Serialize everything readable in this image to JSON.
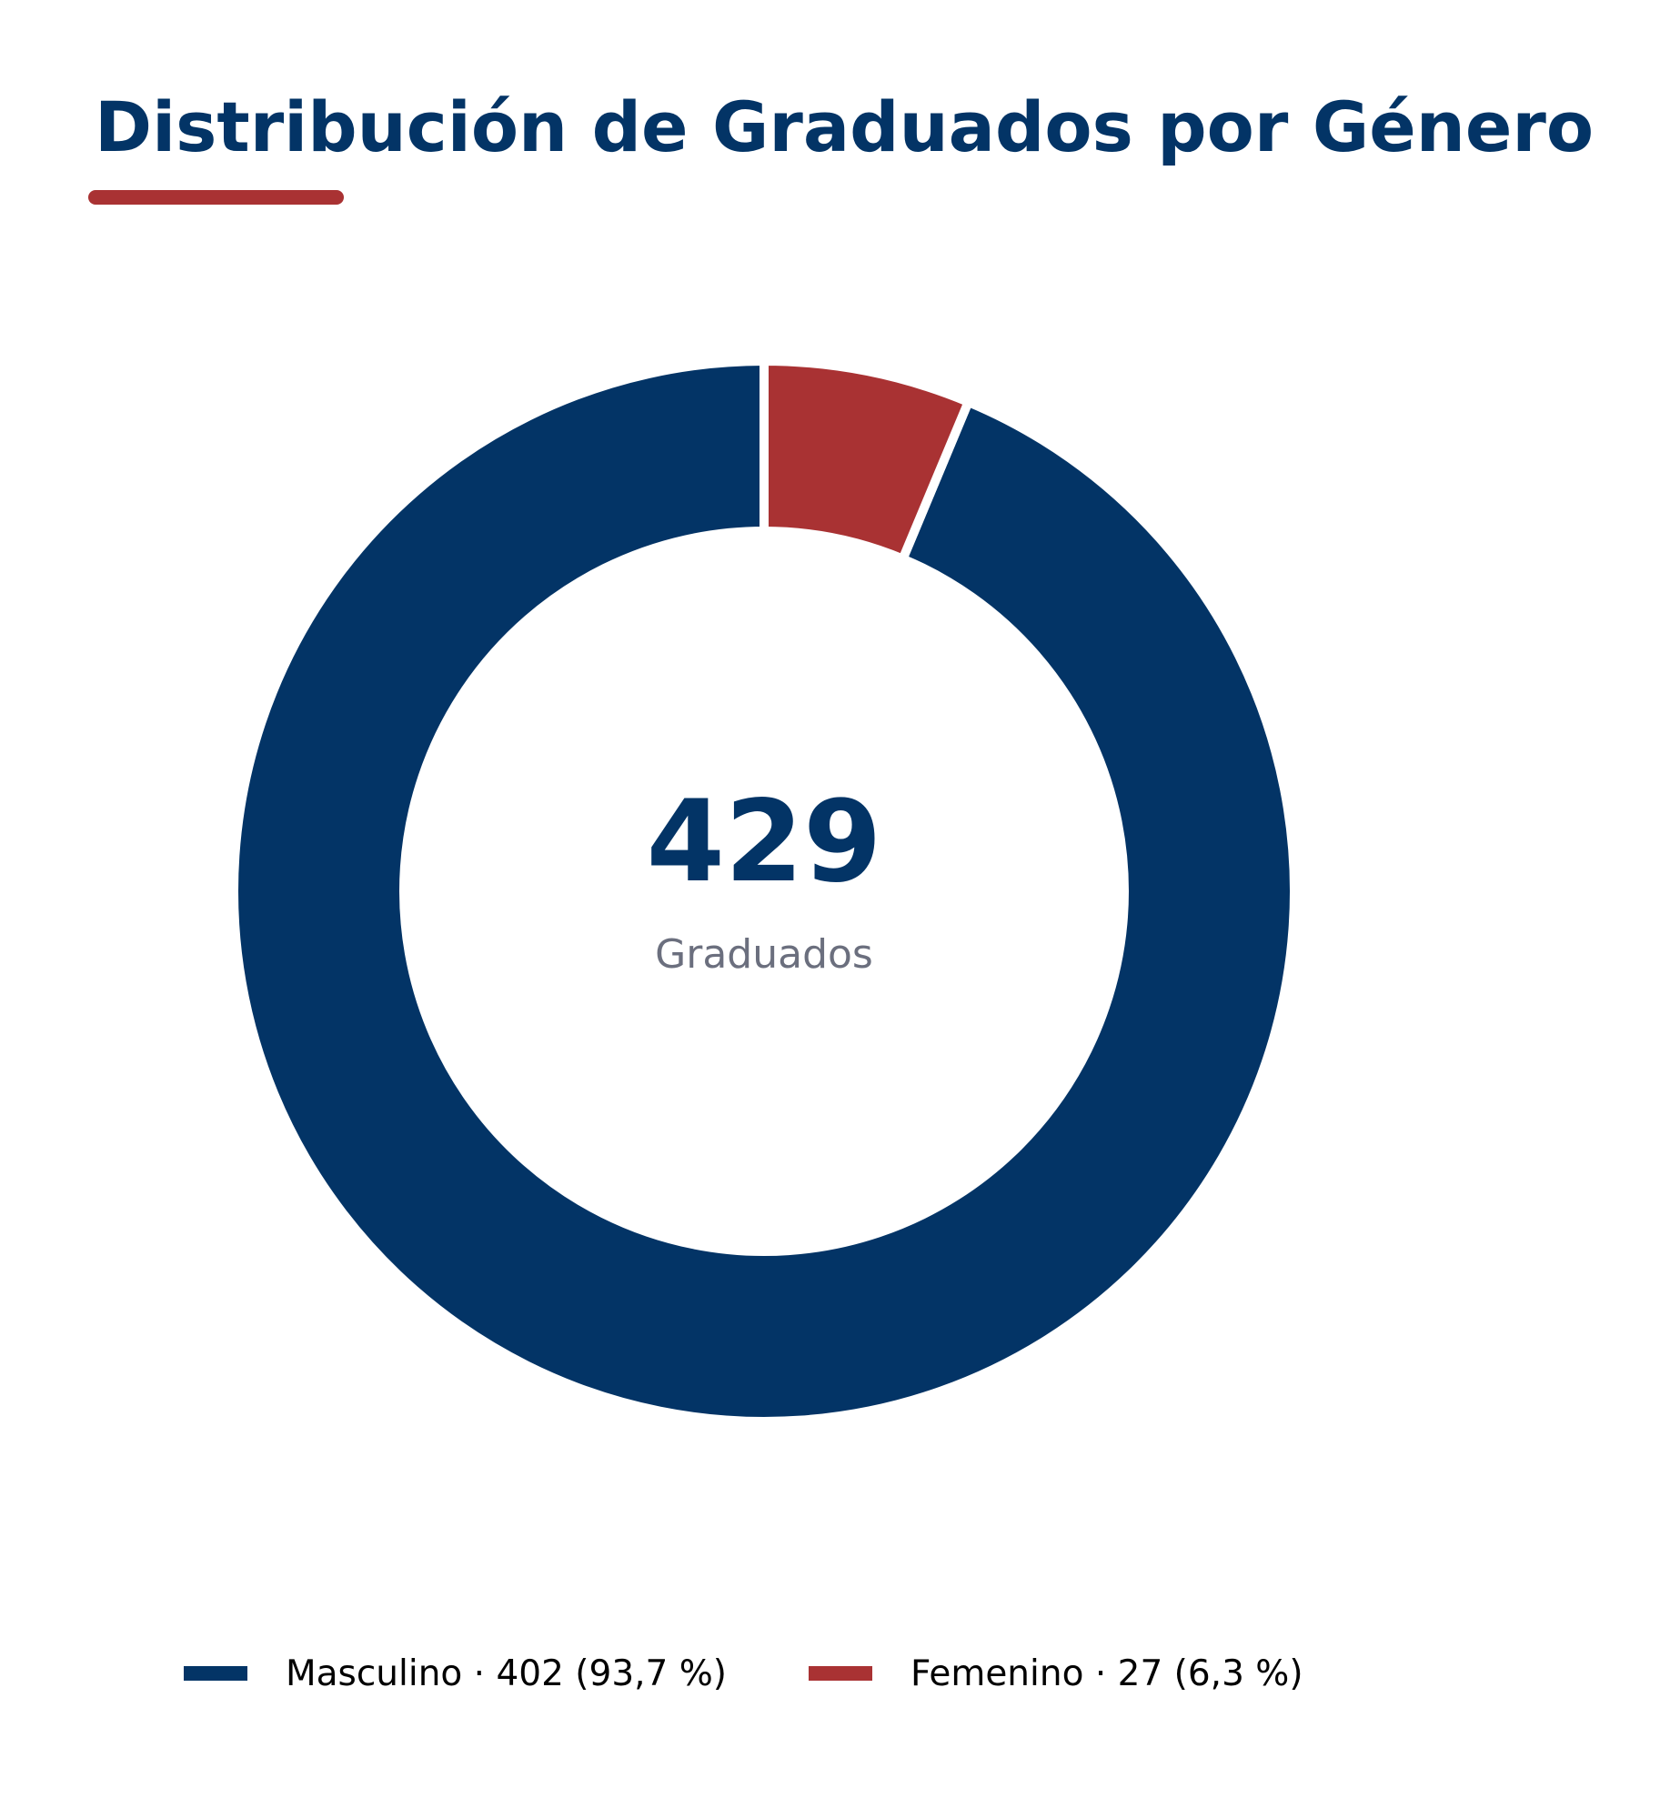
{
  "chart_data": {
    "type": "pie",
    "title": "Distribución de Graduados por Género",
    "categories": [
      "Masculino",
      "Femenino"
    ],
    "values": [
      402,
      27
    ],
    "percentages": [
      "93,7 %",
      "6,3 %"
    ],
    "colors": [
      "#033466",
      "#a93233"
    ],
    "legend_position": "bottom",
    "legend": [
      "Masculino · 402 (93,7 %)",
      "Femenino · 27 (6,3 %)"
    ],
    "center": {
      "value": "429",
      "label": "Graduados"
    }
  },
  "theme": {
    "accent": "#a93233",
    "primary": "#033466",
    "background": "#ffffff"
  }
}
